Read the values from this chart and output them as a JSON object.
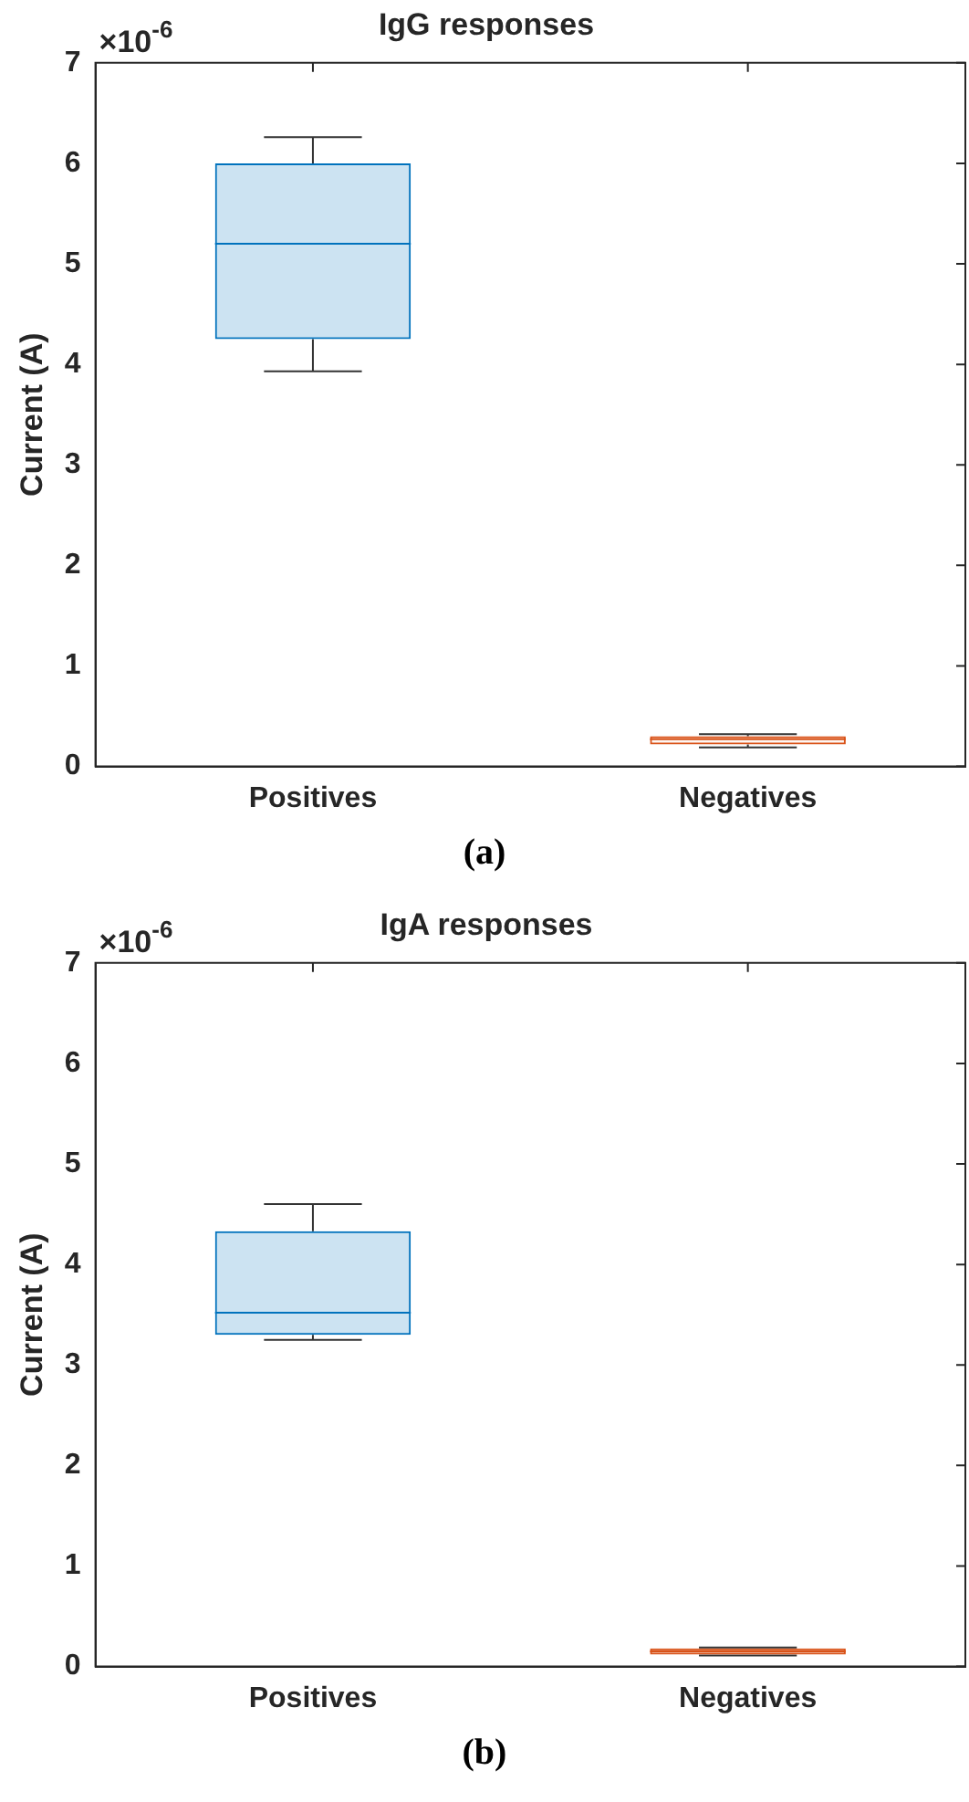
{
  "chart_data": [
    {
      "type": "box",
      "title": "IgG responses",
      "ylabel": "Current (A)",
      "categories": [
        "Positives",
        "Negatives"
      ],
      "colors": [
        "#0072bd",
        "#d95319"
      ],
      "boxes": [
        {
          "low": 3.93,
          "q1": 4.25,
          "median": 5.2,
          "q3": 6.0,
          "high": 6.26
        },
        {
          "low": 0.19,
          "q1": 0.22,
          "median": 0.27,
          "q3": 0.3,
          "high": 0.32
        }
      ],
      "ylim": [
        0,
        7
      ],
      "yticks": [
        0,
        1,
        2,
        3,
        4,
        5,
        6,
        7
      ],
      "grid": false,
      "legend": false,
      "annotations": [
        "×10$^{-6}$",
        "(a)"
      ]
    },
    {
      "type": "box",
      "title": "IgA responses",
      "ylabel": "Current (A)",
      "categories": [
        "Positives",
        "Negatives"
      ],
      "colors": [
        "#0072bd",
        "#d95319"
      ],
      "boxes": [
        {
          "low": 3.25,
          "q1": 3.3,
          "median": 3.52,
          "q3": 4.33,
          "high": 4.6
        },
        {
          "low": 0.11,
          "q1": 0.12,
          "median": 0.15,
          "q3": 0.18,
          "high": 0.19
        }
      ],
      "ylim": [
        0,
        7
      ],
      "yticks": [
        0,
        1,
        2,
        3,
        4,
        5,
        6,
        7
      ],
      "grid": false,
      "legend": false,
      "annotations": [
        "×10$^{-6}$",
        "(b)"
      ]
    }
  ]
}
